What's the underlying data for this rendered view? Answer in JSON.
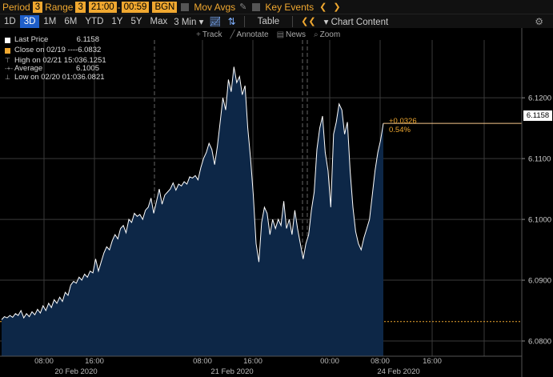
{
  "toolbar": {
    "period_label": "Period",
    "period_value": "3",
    "range_label": "Range",
    "range_value": "3",
    "time_start": "21:00",
    "time_end": "00:59",
    "session": "BGN",
    "mov_avgs": "Mov Avgs",
    "key_events": "Key Events"
  },
  "ranges": [
    "1D",
    "3D",
    "1M",
    "6M",
    "YTD",
    "1Y",
    "5Y",
    "Max"
  ],
  "active_range": "3D",
  "interval": "3 Min",
  "table_label": "Table",
  "chart_content_label": "Chart Content",
  "tools": {
    "track": "Track",
    "annotate": "Annotate",
    "news": "News",
    "zoom": "Zoom"
  },
  "legend": [
    {
      "label": "Last Price",
      "value": "6.1158",
      "color": "#ffffff"
    },
    {
      "label": "Close on 02/19 ----",
      "value": "6.0832",
      "color": "#f0a830"
    },
    {
      "label": "High on 02/21 15:03",
      "value": "6.1251",
      "color": ""
    },
    {
      "label": "Average",
      "value": "6.1005",
      "color": ""
    },
    {
      "label": "Low on 02/20 01:03",
      "value": "6.0821",
      "color": ""
    }
  ],
  "last_price_tag": "6.1158",
  "change_abs": "+0.0326",
  "change_pct": "0.54%",
  "colors": {
    "accent": "#f0a830",
    "area": "#0d2747",
    "line": "#ffffff",
    "active_tab": "#1e5ec9"
  },
  "chart_data": {
    "type": "area",
    "y_ticks": [
      "6.1200",
      "6.1100",
      "6.1000",
      "6.0900",
      "6.0800"
    ],
    "ylim": [
      6.0775,
      6.1295
    ],
    "reference_close": 6.0832,
    "last_price": 6.1158,
    "x_tick_labels": [
      "08:00",
      "16:00",
      "08:00",
      "16:00",
      "00:00",
      "08:00",
      "16:00"
    ],
    "day_labels": [
      "20 Feb 2020",
      "21 Feb 2020",
      "24 Feb 2020"
    ],
    "grid": true,
    "series": [
      {
        "values": [
          6.0835,
          6.084,
          6.0838,
          6.0842,
          6.0839,
          6.0845,
          6.0842,
          6.085,
          6.0838,
          6.0845,
          6.084,
          6.0848,
          6.0843,
          6.0852,
          6.0846,
          6.0858,
          6.085,
          6.0862,
          6.0855,
          6.0868,
          6.0862,
          6.0872,
          6.0865,
          6.088,
          6.0875,
          6.0892,
          6.0898,
          6.0895,
          6.0905,
          6.09,
          6.091,
          6.0905,
          6.0915,
          6.0912,
          6.0935,
          6.0915,
          6.093,
          6.0945,
          6.0955,
          6.095,
          6.0965,
          6.0975,
          6.0968,
          6.0985,
          6.099,
          6.0978,
          6.1,
          6.0995,
          6.101,
          6.1005,
          6.1008,
          6.1,
          6.1015,
          6.102,
          6.1035,
          6.101,
          6.103,
          6.105,
          6.1025,
          6.104,
          6.1045,
          6.105,
          6.106,
          6.1048,
          6.1058,
          6.1055,
          6.1062,
          6.1058,
          6.107,
          6.1068,
          6.1072,
          6.1065,
          6.1085,
          6.11,
          6.111,
          6.1125,
          6.1115,
          6.109,
          6.112,
          6.116,
          6.12,
          6.118,
          6.123,
          6.121,
          6.1251,
          6.1225,
          6.1235,
          6.1205,
          6.122,
          6.115,
          6.11,
          6.104,
          6.096,
          6.093,
          6.0995,
          6.102,
          6.101,
          6.0975,
          6.1,
          6.0985,
          6.1,
          6.099,
          6.103,
          6.0985,
          6.1,
          6.0975,
          6.1015,
          6.0985,
          6.096,
          6.0935,
          6.096,
          6.0975,
          6.1015,
          6.1045,
          6.1115,
          6.115,
          6.117,
          6.111,
          6.108,
          6.102,
          6.114,
          6.116,
          6.119,
          6.118,
          6.114,
          6.116,
          6.108,
          6.102,
          6.098,
          6.096,
          6.095,
          6.097,
          6.0985,
          6.1,
          6.104,
          6.108,
          6.111,
          6.113,
          6.1158
        ]
      }
    ]
  }
}
